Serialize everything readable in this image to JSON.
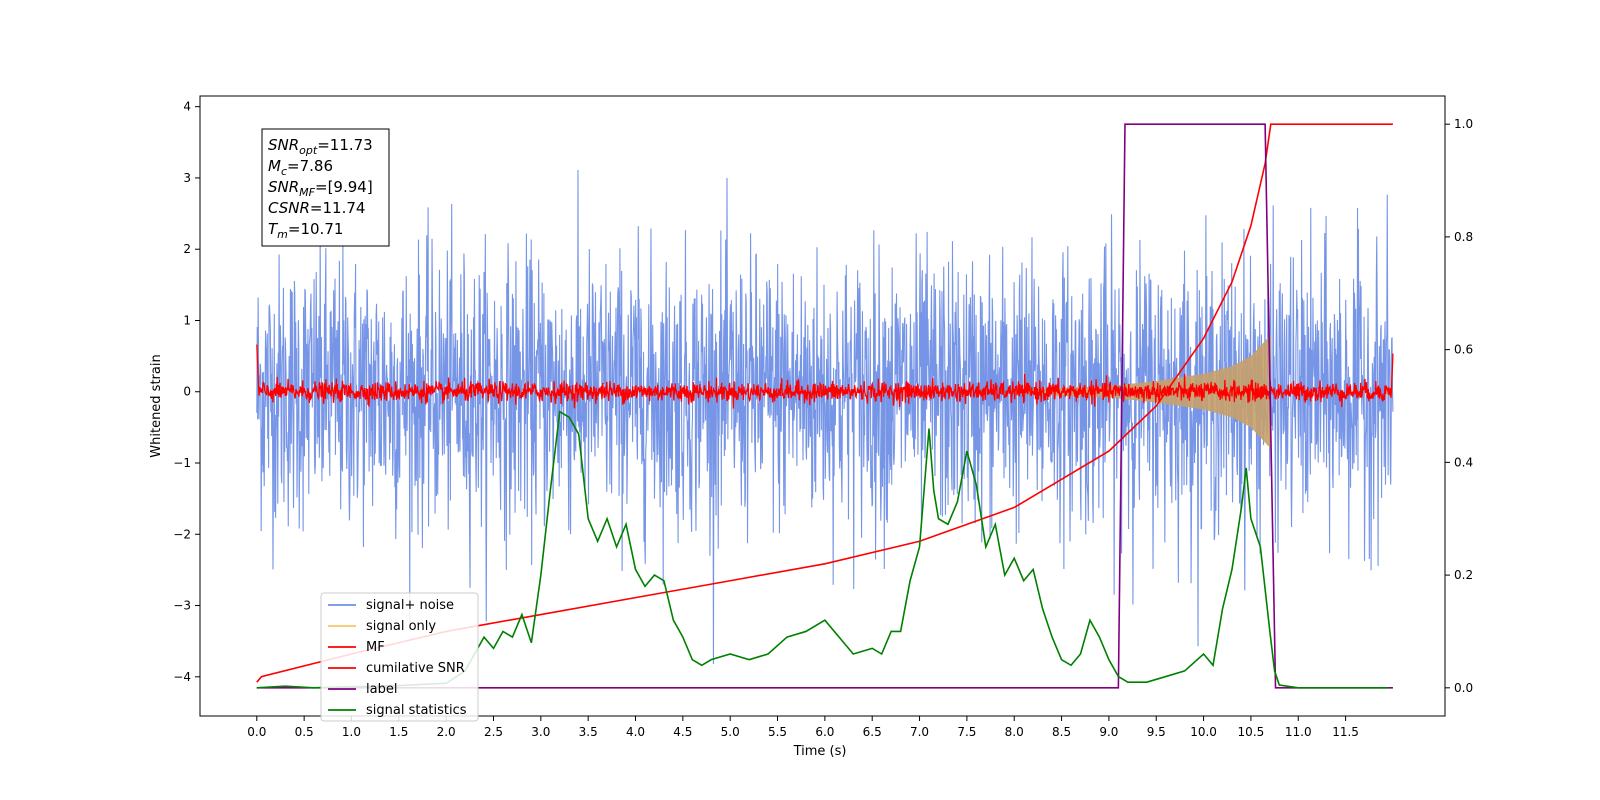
{
  "chart_data": {
    "type": "line",
    "xlabel": "Time (s)",
    "ylabel": "Whitened strain",
    "xlim": [
      -0.6,
      12.55
    ],
    "ylim": [
      -4.55,
      4.15
    ],
    "y2lim": [
      -0.05,
      1.05
    ],
    "x_ticks": [
      "0.0",
      "0.5",
      "1.0",
      "1.5",
      "2.0",
      "2.5",
      "3.0",
      "3.5",
      "4.0",
      "4.5",
      "5.0",
      "5.5",
      "6.0",
      "6.5",
      "7.0",
      "7.5",
      "8.0",
      "8.5",
      "9.0",
      "9.5",
      "10.0",
      "10.5",
      "11.0",
      "11.5"
    ],
    "y_ticks": [
      "4",
      "3",
      "2",
      "1",
      "0",
      "−1",
      "−2",
      "−3",
      "−4"
    ],
    "y2_ticks": [
      "1.0",
      "0.8",
      "0.6",
      "0.4",
      "0.2",
      "0.0"
    ],
    "legend_position": "lower-left",
    "annotation": {
      "lines": [
        {
          "sym": "SNR",
          "sub": "opt",
          "val": "=11.73"
        },
        {
          "sym": "M",
          "sub": "c",
          "val": "=7.86"
        },
        {
          "sym": "SNR",
          "sub": "MF",
          "val": "=[9.94]"
        },
        {
          "sym": "CSNR",
          "sub": "",
          "val": "=11.74"
        },
        {
          "sym": "T",
          "sub": "m",
          "val": "=10.71"
        }
      ]
    },
    "series": [
      {
        "name": "signal+ noise",
        "color": "#6f8fe6",
        "axis": "left",
        "description_values": {
          "std": 1.0,
          "x_range": [
            0.0,
            12.0
          ]
        }
      },
      {
        "name": "signal only",
        "color": "#f5c66b",
        "axis": "left",
        "envelope": {
          "x": [
            8.0,
            9.0,
            9.5,
            10.0,
            10.3,
            10.5,
            10.71
          ],
          "amp": [
            0.03,
            0.08,
            0.15,
            0.25,
            0.36,
            0.5,
            0.8
          ]
        }
      },
      {
        "name": "MF",
        "color": "#ff0000",
        "axis": "left",
        "description_values": {
          "std": 0.07,
          "x_range": [
            0.0,
            12.0
          ]
        }
      },
      {
        "name": "cumilative SNR",
        "color": "#ff0000",
        "axis": "right",
        "x": [
          0.0,
          0.05,
          1.0,
          2.0,
          3.0,
          4.0,
          5.0,
          6.0,
          7.0,
          7.5,
          8.0,
          8.5,
          9.0,
          9.5,
          10.0,
          10.3,
          10.5,
          10.65,
          10.71,
          12.0
        ],
        "y": [
          0.01,
          0.02,
          0.06,
          0.1,
          0.13,
          0.16,
          0.19,
          0.22,
          0.26,
          0.29,
          0.32,
          0.37,
          0.42,
          0.5,
          0.62,
          0.72,
          0.82,
          0.93,
          1.0,
          1.0
        ]
      },
      {
        "name": "label",
        "color": "#800080",
        "axis": "right",
        "x": [
          0.0,
          9.1,
          9.17,
          10.65,
          10.76,
          12.0
        ],
        "y": [
          0.0,
          0.0,
          1.0,
          1.0,
          0.0,
          0.0
        ]
      },
      {
        "name": "signal statistics",
        "color": "#008000",
        "axis": "right",
        "x": [
          0.0,
          0.3,
          0.6,
          1.0,
          1.5,
          2.0,
          2.2,
          2.3,
          2.4,
          2.5,
          2.6,
          2.7,
          2.8,
          2.9,
          3.0,
          3.1,
          3.2,
          3.3,
          3.4,
          3.5,
          3.6,
          3.7,
          3.8,
          3.9,
          4.0,
          4.1,
          4.2,
          4.3,
          4.4,
          4.5,
          4.6,
          4.7,
          4.8,
          5.0,
          5.2,
          5.4,
          5.6,
          5.8,
          6.0,
          6.2,
          6.3,
          6.5,
          6.6,
          6.7,
          6.8,
          6.9,
          7.0,
          7.1,
          7.15,
          7.2,
          7.3,
          7.4,
          7.5,
          7.6,
          7.7,
          7.8,
          7.9,
          8.0,
          8.1,
          8.2,
          8.3,
          8.4,
          8.5,
          8.6,
          8.7,
          8.8,
          8.9,
          9.0,
          9.1,
          9.2,
          9.4,
          9.6,
          9.8,
          10.0,
          10.1,
          10.2,
          10.3,
          10.4,
          10.45,
          10.5,
          10.6,
          10.7,
          10.75,
          10.8,
          11.0,
          11.5,
          11.95
        ],
        "y": [
          0.0,
          0.003,
          0.0,
          0.002,
          0.004,
          0.008,
          0.03,
          0.06,
          0.09,
          0.07,
          0.1,
          0.09,
          0.13,
          0.08,
          0.2,
          0.35,
          0.49,
          0.48,
          0.45,
          0.3,
          0.26,
          0.3,
          0.25,
          0.29,
          0.21,
          0.18,
          0.2,
          0.19,
          0.12,
          0.09,
          0.05,
          0.04,
          0.05,
          0.06,
          0.05,
          0.06,
          0.09,
          0.1,
          0.12,
          0.08,
          0.06,
          0.07,
          0.06,
          0.1,
          0.1,
          0.19,
          0.25,
          0.46,
          0.35,
          0.3,
          0.29,
          0.33,
          0.42,
          0.36,
          0.25,
          0.29,
          0.2,
          0.23,
          0.19,
          0.21,
          0.14,
          0.09,
          0.05,
          0.04,
          0.06,
          0.12,
          0.09,
          0.05,
          0.02,
          0.01,
          0.01,
          0.02,
          0.03,
          0.06,
          0.04,
          0.14,
          0.21,
          0.32,
          0.39,
          0.3,
          0.25,
          0.1,
          0.03,
          0.005,
          0.0,
          0.0,
          0.0
        ]
      }
    ]
  }
}
